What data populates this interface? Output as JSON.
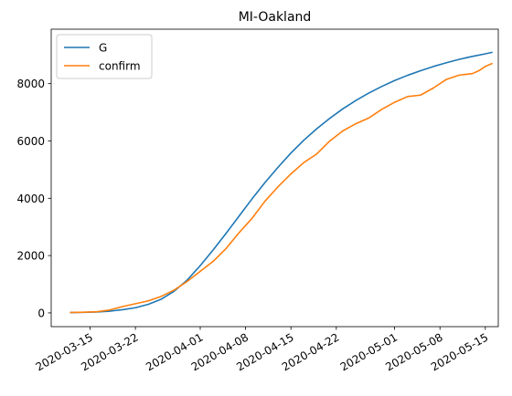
{
  "chart_data": {
    "type": "line",
    "title": "MI-Oakland",
    "xlabel": "",
    "ylabel": "",
    "x_ticks": [
      "2020-03-15",
      "2020-03-22",
      "2020-04-01",
      "2020-04-08",
      "2020-04-15",
      "2020-04-22",
      "2020-05-01",
      "2020-05-08",
      "2020-05-15"
    ],
    "y_ticks": [
      "0",
      "2000",
      "4000",
      "6000",
      "8000"
    ],
    "xlim": [
      "2020-03-09",
      "2020-05-17"
    ],
    "ylim": [
      -480,
      9900
    ],
    "grid": false,
    "legend_position": "upper left",
    "series": [
      {
        "name": "G",
        "color": "#1f77b4",
        "points": [
          [
            "2020-03-12",
            10
          ],
          [
            "2020-03-14",
            20
          ],
          [
            "2020-03-16",
            30
          ],
          [
            "2020-03-18",
            60
          ],
          [
            "2020-03-20",
            110
          ],
          [
            "2020-03-22",
            180
          ],
          [
            "2020-03-24",
            300
          ],
          [
            "2020-03-26",
            480
          ],
          [
            "2020-03-28",
            760
          ],
          [
            "2020-03-30",
            1150
          ],
          [
            "2020-04-01",
            1650
          ],
          [
            "2020-04-03",
            2200
          ],
          [
            "2020-04-05",
            2780
          ],
          [
            "2020-04-07",
            3380
          ],
          [
            "2020-04-09",
            3980
          ],
          [
            "2020-04-11",
            4550
          ],
          [
            "2020-04-13",
            5080
          ],
          [
            "2020-04-15",
            5580
          ],
          [
            "2020-04-17",
            6030
          ],
          [
            "2020-04-19",
            6430
          ],
          [
            "2020-04-21",
            6790
          ],
          [
            "2020-04-23",
            7120
          ],
          [
            "2020-04-25",
            7410
          ],
          [
            "2020-04-27",
            7670
          ],
          [
            "2020-04-29",
            7900
          ],
          [
            "2020-05-01",
            8110
          ],
          [
            "2020-05-03",
            8290
          ],
          [
            "2020-05-05",
            8450
          ],
          [
            "2020-05-07",
            8600
          ],
          [
            "2020-05-09",
            8730
          ],
          [
            "2020-05-11",
            8850
          ],
          [
            "2020-05-13",
            8950
          ],
          [
            "2020-05-15",
            9040
          ],
          [
            "2020-05-16",
            9090
          ]
        ]
      },
      {
        "name": "confirm",
        "color": "#ff7f0e",
        "points": [
          [
            "2020-03-12",
            15
          ],
          [
            "2020-03-14",
            25
          ],
          [
            "2020-03-16",
            40
          ],
          [
            "2020-03-18",
            100
          ],
          [
            "2020-03-20",
            220
          ],
          [
            "2020-03-22",
            320
          ],
          [
            "2020-03-24",
            420
          ],
          [
            "2020-03-26",
            580
          ],
          [
            "2020-03-28",
            800
          ],
          [
            "2020-03-30",
            1100
          ],
          [
            "2020-04-01",
            1450
          ],
          [
            "2020-04-03",
            1800
          ],
          [
            "2020-04-05",
            2250
          ],
          [
            "2020-04-07",
            2800
          ],
          [
            "2020-04-09",
            3300
          ],
          [
            "2020-04-11",
            3900
          ],
          [
            "2020-04-13",
            4400
          ],
          [
            "2020-04-15",
            4850
          ],
          [
            "2020-04-17",
            5250
          ],
          [
            "2020-04-19",
            5550
          ],
          [
            "2020-04-21",
            6000
          ],
          [
            "2020-04-23",
            6350
          ],
          [
            "2020-04-25",
            6600
          ],
          [
            "2020-04-27",
            6800
          ],
          [
            "2020-04-29",
            7100
          ],
          [
            "2020-05-01",
            7350
          ],
          [
            "2020-05-03",
            7550
          ],
          [
            "2020-05-05",
            7600
          ],
          [
            "2020-05-07",
            7850
          ],
          [
            "2020-05-09",
            8150
          ],
          [
            "2020-05-11",
            8300
          ],
          [
            "2020-05-13",
            8350
          ],
          [
            "2020-05-14",
            8450
          ],
          [
            "2020-05-15",
            8600
          ],
          [
            "2020-05-16",
            8700
          ]
        ]
      }
    ]
  }
}
